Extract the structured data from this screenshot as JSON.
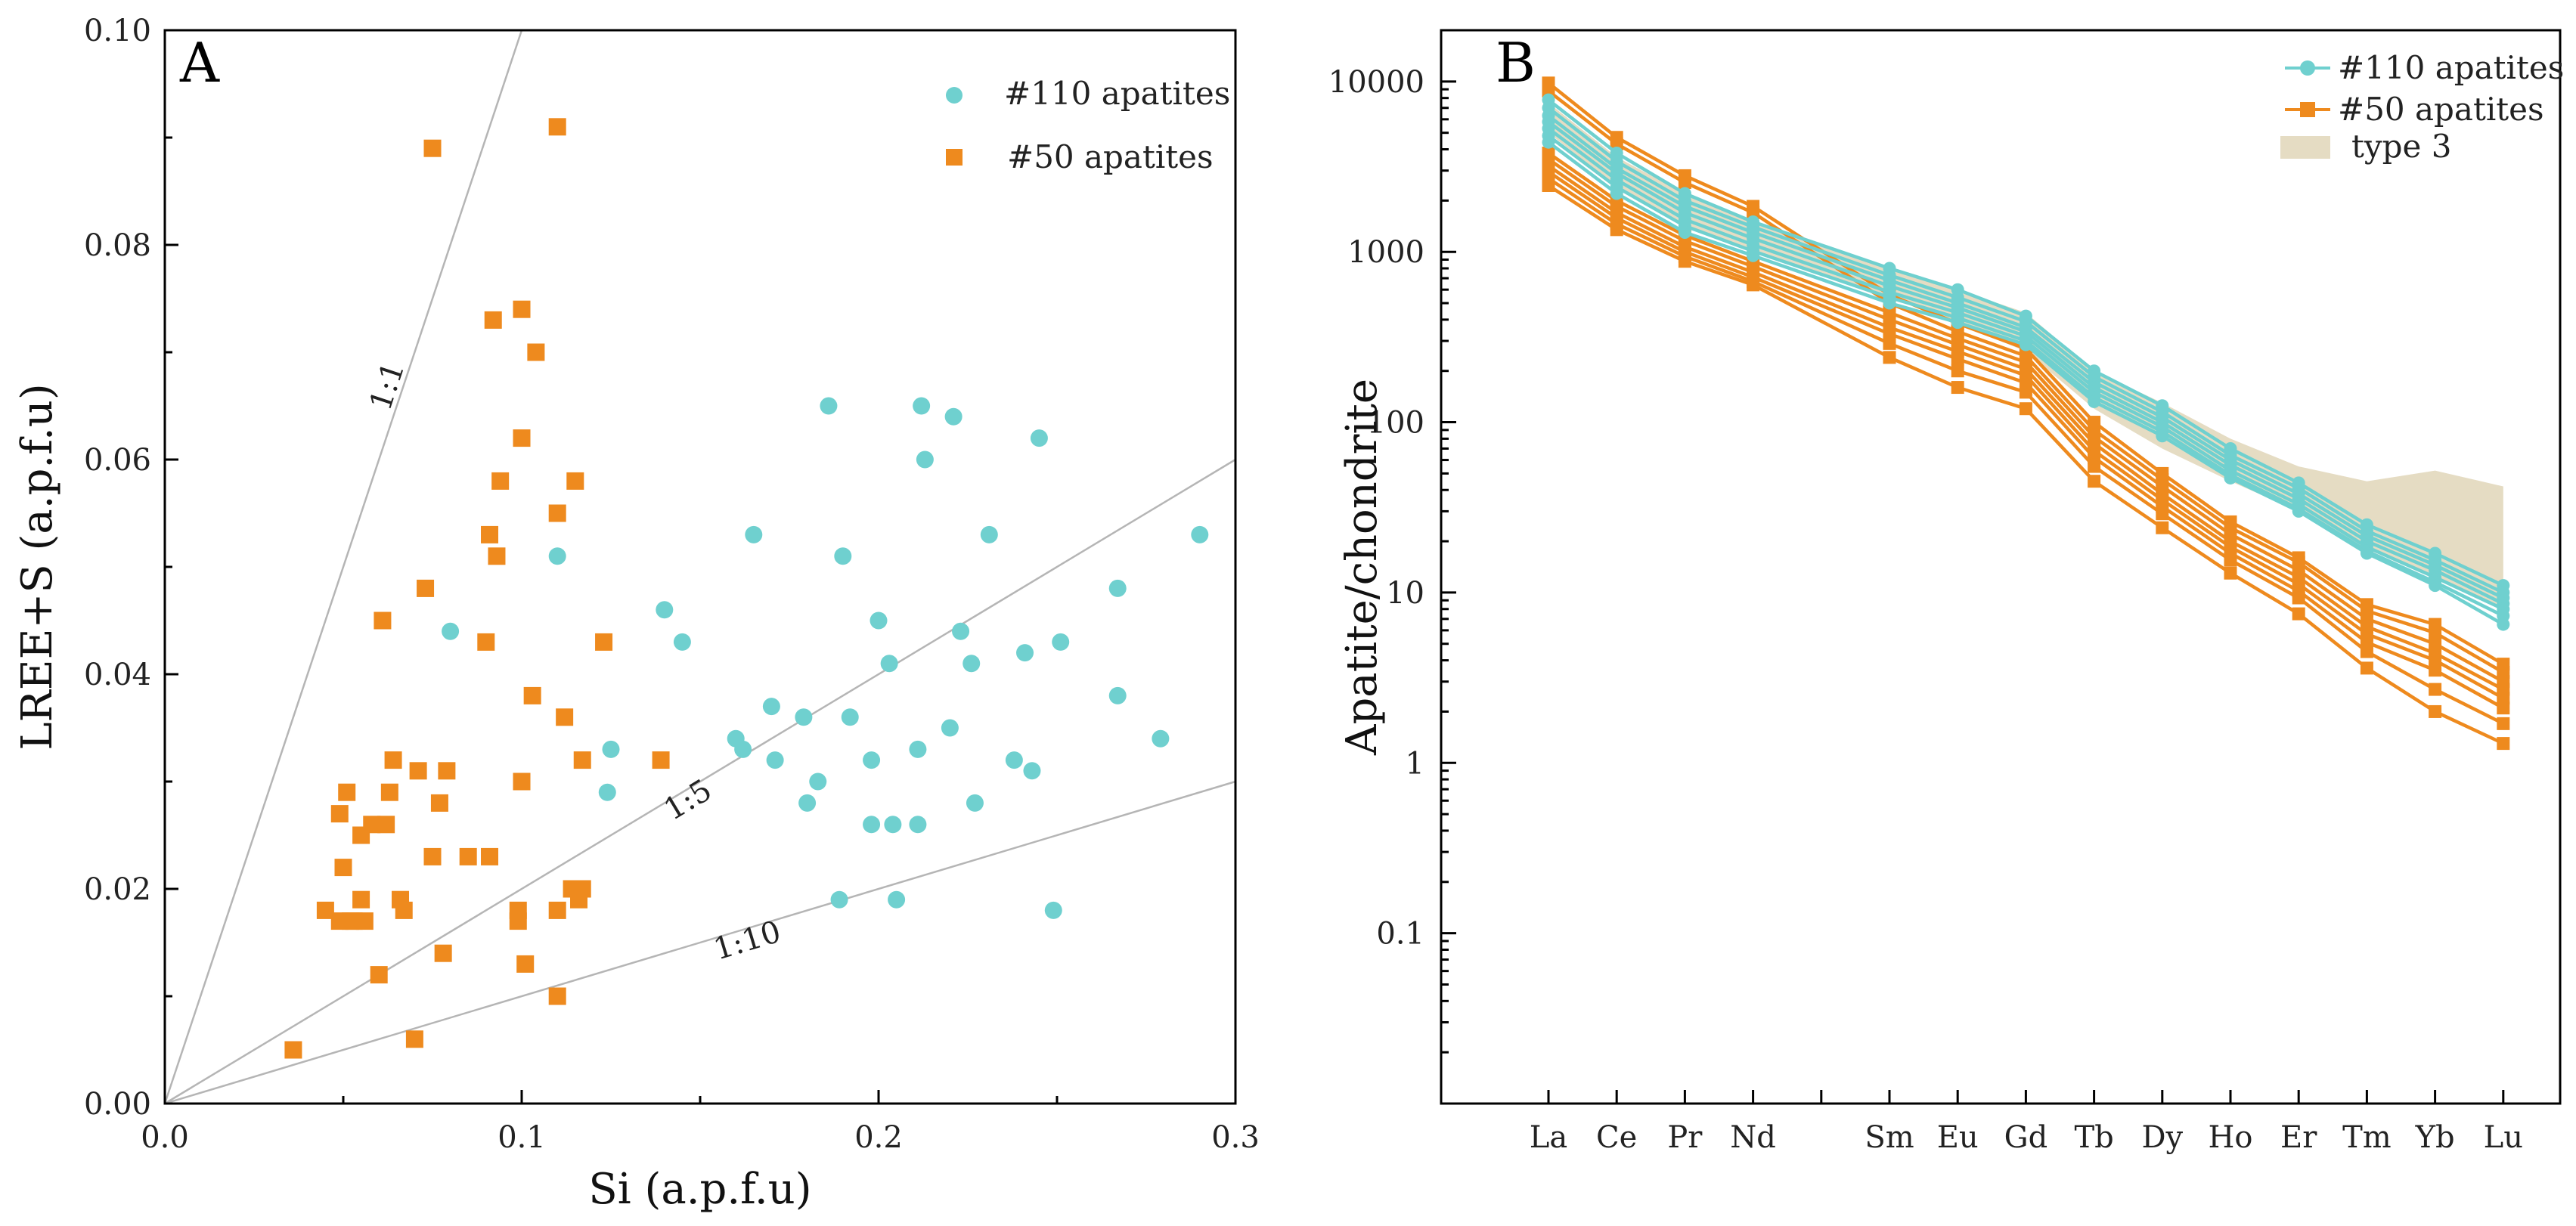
{
  "chart_data": [
    {
      "type": "scatter",
      "panel_label": "A",
      "title": "",
      "xlabel": "Si (a.p.f.u)",
      "ylabel": "LREE+S  (a.p.f.u)",
      "xlim": [
        0,
        0.3
      ],
      "ylim": [
        0,
        0.1
      ],
      "xticks": [
        0.0,
        0.1,
        0.2,
        0.3
      ],
      "xtick_labels": [
        "0.0",
        "0.1",
        "0.2",
        "0.3"
      ],
      "yticks": [
        0.0,
        0.02,
        0.04,
        0.06,
        0.08,
        0.1
      ],
      "ytick_labels": [
        "0.00",
        "0.02",
        "0.04",
        "0.06",
        "0.08",
        "0.10"
      ],
      "reference_lines": [
        {
          "label": "1:1",
          "slope": 1
        },
        {
          "label": "1:5",
          "slope": 0.2
        },
        {
          "label": "1:10",
          "slope": 0.1
        }
      ],
      "legend_position": "top-right",
      "series": [
        {
          "name": "#110 apatites",
          "marker": "circle",
          "color": "#6FD0CF",
          "points": [
            [
              0.08,
              0.044
            ],
            [
              0.11,
              0.051
            ],
            [
              0.125,
              0.033
            ],
            [
              0.124,
              0.029
            ],
            [
              0.14,
              0.046
            ],
            [
              0.145,
              0.043
            ],
            [
              0.16,
              0.034
            ],
            [
              0.162,
              0.033
            ],
            [
              0.165,
              0.053
            ],
            [
              0.17,
              0.037
            ],
            [
              0.171,
              0.032
            ],
            [
              0.179,
              0.036
            ],
            [
              0.18,
              0.028
            ],
            [
              0.183,
              0.03
            ],
            [
              0.186,
              0.065
            ],
            [
              0.189,
              0.019
            ],
            [
              0.19,
              0.051
            ],
            [
              0.192,
              0.036
            ],
            [
              0.198,
              0.026
            ],
            [
              0.198,
              0.032
            ],
            [
              0.2,
              0.045
            ],
            [
              0.203,
              0.041
            ],
            [
              0.204,
              0.026
            ],
            [
              0.205,
              0.019
            ],
            [
              0.211,
              0.033
            ],
            [
              0.211,
              0.026
            ],
            [
              0.212,
              0.065
            ],
            [
              0.213,
              0.06
            ],
            [
              0.22,
              0.035
            ],
            [
              0.221,
              0.064
            ],
            [
              0.223,
              0.044
            ],
            [
              0.226,
              0.041
            ],
            [
              0.227,
              0.028
            ],
            [
              0.231,
              0.053
            ],
            [
              0.238,
              0.032
            ],
            [
              0.241,
              0.042
            ],
            [
              0.243,
              0.031
            ],
            [
              0.245,
              0.062
            ],
            [
              0.249,
              0.018
            ],
            [
              0.251,
              0.043
            ],
            [
              0.267,
              0.048
            ],
            [
              0.267,
              0.038
            ],
            [
              0.279,
              0.034
            ],
            [
              0.29,
              0.053
            ]
          ]
        },
        {
          "name": "#50 apatites",
          "marker": "square",
          "color": "#EE8A1E",
          "points": [
            [
              0.036,
              0.005
            ],
            [
              0.045,
              0.018
            ],
            [
              0.049,
              0.017
            ],
            [
              0.049,
              0.027
            ],
            [
              0.05,
              0.022
            ],
            [
              0.051,
              0.029
            ],
            [
              0.052,
              0.017
            ],
            [
              0.053,
              0.017
            ],
            [
              0.055,
              0.019
            ],
            [
              0.056,
              0.017
            ],
            [
              0.055,
              0.025
            ],
            [
              0.058,
              0.026
            ],
            [
              0.06,
              0.012
            ],
            [
              0.061,
              0.045
            ],
            [
              0.062,
              0.026
            ],
            [
              0.063,
              0.029
            ],
            [
              0.064,
              0.032
            ],
            [
              0.066,
              0.019
            ],
            [
              0.067,
              0.018
            ],
            [
              0.07,
              0.006
            ],
            [
              0.071,
              0.031
            ],
            [
              0.073,
              0.048
            ],
            [
              0.075,
              0.023
            ],
            [
              0.075,
              0.089
            ],
            [
              0.077,
              0.028
            ],
            [
              0.078,
              0.014
            ],
            [
              0.079,
              0.031
            ],
            [
              0.085,
              0.023
            ],
            [
              0.09,
              0.043
            ],
            [
              0.091,
              0.023
            ],
            [
              0.091,
              0.053
            ],
            [
              0.092,
              0.073
            ],
            [
              0.093,
              0.051
            ],
            [
              0.094,
              0.058
            ],
            [
              0.099,
              0.017
            ],
            [
              0.099,
              0.018
            ],
            [
              0.1,
              0.062
            ],
            [
              0.1,
              0.074
            ],
            [
              0.1,
              0.03
            ],
            [
              0.101,
              0.013
            ],
            [
              0.103,
              0.038
            ],
            [
              0.104,
              0.07
            ],
            [
              0.11,
              0.01
            ],
            [
              0.11,
              0.018
            ],
            [
              0.11,
              0.091
            ],
            [
              0.11,
              0.055
            ],
            [
              0.112,
              0.036
            ],
            [
              0.114,
              0.02
            ],
            [
              0.115,
              0.058
            ],
            [
              0.116,
              0.019
            ],
            [
              0.117,
              0.032
            ],
            [
              0.117,
              0.02
            ],
            [
              0.123,
              0.043
            ],
            [
              0.139,
              0.032
            ]
          ]
        }
      ]
    },
    {
      "type": "line",
      "panel_label": "B",
      "title": "",
      "xlabel": "",
      "ylabel": "Apatite/chondrite",
      "yscale": "log",
      "ylim": [
        0.01,
        20000
      ],
      "yticks": [
        0.1,
        1,
        10,
        100,
        1000,
        10000
      ],
      "ytick_labels": [
        "0.1",
        "1",
        "10",
        "100",
        "1000",
        "10000"
      ],
      "categories": [
        "La",
        "Ce",
        "Pr",
        "Nd",
        "",
        "Sm",
        "Eu",
        "Gd",
        "Tb",
        "Dy",
        "Ho",
        "Er",
        "Tm",
        "Yb",
        "Lu"
      ],
      "legend_position": "top-right",
      "band": {
        "name": "type 3",
        "color": "#E5DCC3",
        "lower": [
          5000,
          2400,
          1400,
          1000,
          null,
          550,
          380,
          260,
          120,
          70,
          45,
          30,
          18,
          12,
          8
        ],
        "upper": [
          7500,
          3600,
          2200,
          1500,
          null,
          800,
          600,
          440,
          200,
          130,
          80,
          55,
          45,
          52,
          42
        ]
      },
      "series": [
        {
          "name": "#110 apatites",
          "marker": "circle",
          "color": "#6FD0CF",
          "values": [
            7800,
            3800,
            2200,
            1500,
            null,
            800,
            600,
            420,
            200,
            125,
            70,
            44,
            25,
            17,
            11
          ]
        },
        {
          "name": "#110 apatites",
          "marker": "circle",
          "color": "#6FD0CF",
          "values": [
            7000,
            3400,
            2000,
            1400,
            null,
            730,
            540,
            390,
            185,
            115,
            64,
            41,
            23,
            15.5,
            10
          ]
        },
        {
          "name": "#110 apatites",
          "marker": "circle",
          "color": "#6FD0CF",
          "values": [
            6300,
            3100,
            1850,
            1300,
            null,
            680,
            500,
            360,
            172,
            107,
            60,
            38,
            21.5,
            14.5,
            9.3
          ]
        },
        {
          "name": "#110 apatites",
          "marker": "circle",
          "color": "#6FD0CF",
          "values": [
            5800,
            2900,
            1700,
            1200,
            null,
            630,
            470,
            340,
            160,
            100,
            56,
            35.5,
            20,
            13.5,
            8.6
          ]
        },
        {
          "name": "#110 apatites",
          "marker": "circle",
          "color": "#6FD0CF",
          "values": [
            5300,
            2650,
            1550,
            1100,
            null,
            580,
            440,
            320,
            150,
            94,
            52,
            33,
            18.5,
            12.3,
            8
          ]
        },
        {
          "name": "#110 apatites",
          "marker": "circle",
          "color": "#6FD0CF",
          "values": [
            4800,
            2400,
            1420,
            1010,
            null,
            540,
            410,
            300,
            140,
            88,
            49,
            31,
            17.5,
            11.5,
            7.3
          ]
        },
        {
          "name": "#110 apatites",
          "marker": "circle",
          "color": "#6FD0CF",
          "values": [
            4400,
            2200,
            1300,
            950,
            null,
            500,
            385,
            285,
            132,
            83,
            47,
            30,
            17,
            11,
            6.5
          ]
        },
        {
          "name": "#50 apatites",
          "marker": "square",
          "color": "#EE8A1E",
          "values": [
            9800,
            4700,
            2800,
            1850,
            null,
            560,
            380,
            270,
            100,
            50,
            26,
            16,
            8.5,
            6.5,
            3.8
          ]
        },
        {
          "name": "#50 apatites",
          "marker": "square",
          "color": "#EE8A1E",
          "values": [
            8800,
            4300,
            2550,
            1700,
            null,
            500,
            340,
            245,
            90,
            46,
            24,
            15,
            7.8,
            5.8,
            3.4
          ]
        },
        {
          "name": "#50 apatites",
          "marker": "square",
          "color": "#EE8A1E",
          "values": [
            3800,
            2000,
            1250,
            880,
            null,
            440,
            310,
            225,
            82,
            42,
            22,
            13.5,
            7,
            5,
            3
          ]
        },
        {
          "name": "#50 apatites",
          "marker": "square",
          "color": "#EE8A1E",
          "values": [
            3500,
            1850,
            1160,
            820,
            null,
            400,
            285,
            205,
            75,
            38,
            20,
            12.3,
            6.3,
            4.4,
            2.7
          ]
        },
        {
          "name": "#50 apatites",
          "marker": "square",
          "color": "#EE8A1E",
          "values": [
            3200,
            1700,
            1070,
            760,
            null,
            360,
            260,
            188,
            68,
            35,
            18.5,
            11.2,
            5.7,
            4,
            2.4
          ]
        },
        {
          "name": "#50 apatites",
          "marker": "square",
          "color": "#EE8A1E",
          "values": [
            2950,
            1580,
            1000,
            710,
            null,
            330,
            235,
            170,
            62,
            32,
            17,
            10.2,
            5.1,
            3.5,
            2.1
          ]
        },
        {
          "name": "#50 apatites",
          "marker": "square",
          "color": "#EE8A1E",
          "values": [
            2700,
            1460,
            940,
            670,
            null,
            290,
            200,
            150,
            55,
            29,
            15.5,
            9.3,
            4.5,
            2.7,
            1.7
          ]
        },
        {
          "name": "#50 apatites",
          "marker": "square",
          "color": "#EE8A1E",
          "values": [
            2450,
            1350,
            880,
            640,
            null,
            240,
            160,
            120,
            45,
            24,
            13,
            7.5,
            3.6,
            2,
            1.3
          ]
        }
      ]
    }
  ]
}
